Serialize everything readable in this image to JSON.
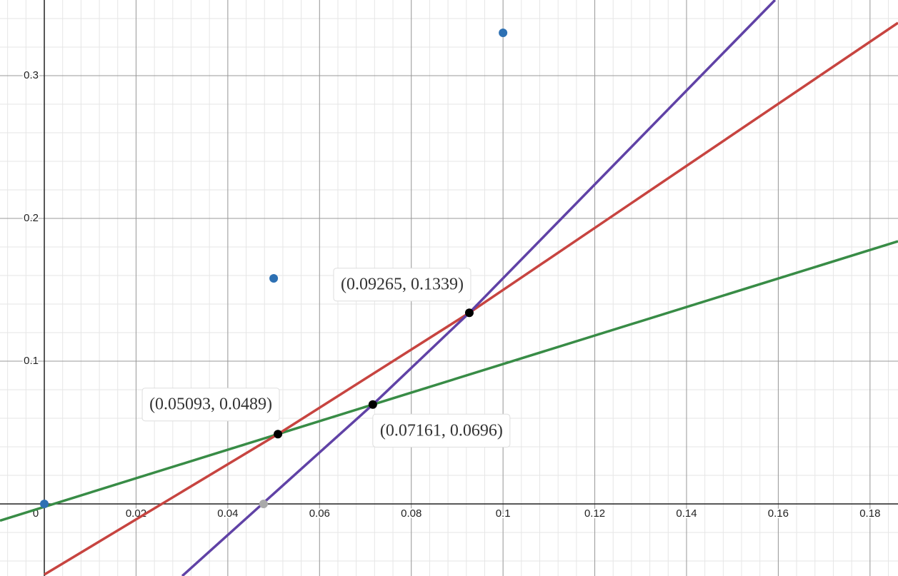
{
  "chart_data": {
    "type": "line",
    "xlim": [
      -0.00966,
      0.1861
    ],
    "ylim": [
      -0.0505,
      0.353
    ],
    "xticks": [
      0,
      0.02,
      0.04,
      0.06,
      0.08,
      0.1,
      0.12,
      0.14,
      0.16,
      0.18
    ],
    "yticks": [
      0.1,
      0.2,
      0.3
    ],
    "grid": true,
    "minor_grid": {
      "x": 0.004,
      "y": 0.02
    },
    "series": [
      {
        "color": "#388c46",
        "x": [
          -0.00966,
          0.05093,
          0.07161,
          0.1861
        ],
        "values": [
          -0.0117,
          0.0489,
          0.0696,
          0.184
        ]
      },
      {
        "color": "#c74440",
        "x": [
          0,
          0.05093,
          0.09265,
          0.1861
        ],
        "values": [
          -0.0495,
          0.0489,
          0.1339,
          0.337
        ]
      },
      {
        "color": "#6042a6",
        "x": [
          0.03006,
          0.07161,
          0.09265,
          0.1593
        ],
        "values": [
          -0.0505,
          0.0696,
          0.1339,
          0.353
        ]
      }
    ],
    "points": [
      {
        "color": "#2d70b3",
        "x": [
          0,
          0.05,
          0.1
        ],
        "values": [
          0,
          0.158,
          0.33
        ]
      },
      {
        "color": "#aaaaaa",
        "x": [
          0.0478
        ],
        "values": [
          0
        ]
      },
      {
        "color": "#000000",
        "x": [
          0.05093,
          0.07161,
          0.09265
        ],
        "values": [
          0.0489,
          0.0696,
          0.1339
        ],
        "labels": [
          "(0.05093, 0.0489)",
          "(0.07161, 0.0696)",
          "(0.09265, 0.1339)"
        ]
      }
    ]
  }
}
